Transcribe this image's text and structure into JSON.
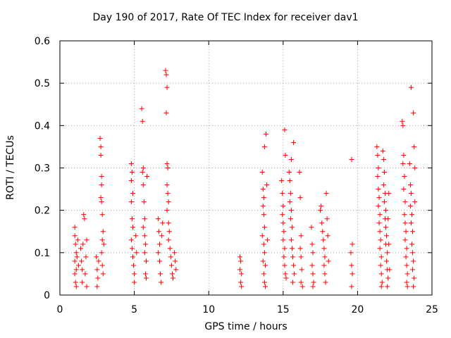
{
  "chart_data": {
    "type": "scatter",
    "title": "Day 190 of 2017, Rate Of TEC Index for receiver dav1",
    "xlabel": "GPS time / hours",
    "ylabel": "ROTI / TECUs",
    "xlim": [
      0,
      25
    ],
    "ylim": [
      0,
      0.6
    ],
    "xticks": [
      "0",
      "5",
      "10",
      "15",
      "20",
      "25"
    ],
    "yticks": [
      "0",
      "0.1",
      "0.2",
      "0.3",
      "0.4",
      "0.5",
      "0.6"
    ],
    "grid": true,
    "marker": "+",
    "color": "#ff0000",
    "series": [
      {
        "points": [
          [
            1.0,
            0.16
          ],
          [
            1.0,
            0.14
          ],
          [
            1.05,
            0.12
          ],
          [
            1.1,
            0.1
          ],
          [
            1.0,
            0.08
          ],
          [
            1.1,
            0.06
          ],
          [
            1.0,
            0.05
          ],
          [
            1.05,
            0.03
          ],
          [
            1.1,
            0.02
          ],
          [
            1.15,
            0.09
          ],
          [
            1.2,
            0.13
          ],
          [
            1.25,
            0.07
          ],
          [
            1.4,
            0.11
          ],
          [
            1.45,
            0.08
          ],
          [
            1.5,
            0.06
          ],
          [
            1.5,
            0.03
          ],
          [
            1.55,
            0.12
          ],
          [
            1.6,
            0.19
          ],
          [
            1.65,
            0.18
          ],
          [
            1.7,
            0.05
          ],
          [
            1.75,
            0.09
          ],
          [
            1.8,
            0.02
          ],
          [
            1.8,
            0.13
          ],
          [
            2.45,
            0.09
          ],
          [
            2.5,
            0.06
          ],
          [
            2.5,
            0.02
          ],
          [
            2.55,
            0.04
          ],
          [
            2.6,
            0.08
          ],
          [
            2.7,
            0.37
          ],
          [
            2.75,
            0.35
          ],
          [
            2.75,
            0.33
          ],
          [
            2.8,
            0.28
          ],
          [
            2.8,
            0.26
          ],
          [
            2.75,
            0.23
          ],
          [
            2.8,
            0.22
          ],
          [
            2.85,
            0.19
          ],
          [
            2.9,
            0.15
          ],
          [
            2.85,
            0.13
          ],
          [
            2.8,
            0.1
          ],
          [
            2.85,
            0.07
          ],
          [
            2.9,
            0.05
          ],
          [
            2.95,
            0.12
          ],
          [
            4.8,
            0.31
          ],
          [
            4.85,
            0.29
          ],
          [
            4.8,
            0.27
          ],
          [
            4.9,
            0.24
          ],
          [
            4.8,
            0.22
          ],
          [
            4.85,
            0.18
          ],
          [
            4.9,
            0.16
          ],
          [
            4.8,
            0.13
          ],
          [
            4.85,
            0.11
          ],
          [
            4.9,
            0.09
          ],
          [
            4.95,
            0.07
          ],
          [
            5.0,
            0.05
          ],
          [
            5.0,
            0.03
          ],
          [
            5.1,
            0.14
          ],
          [
            5.15,
            0.1
          ],
          [
            5.5,
            0.44
          ],
          [
            5.55,
            0.41
          ],
          [
            5.6,
            0.3
          ],
          [
            5.55,
            0.29
          ],
          [
            5.6,
            0.26
          ],
          [
            5.65,
            0.22
          ],
          [
            5.7,
            0.18
          ],
          [
            5.6,
            0.16
          ],
          [
            5.7,
            0.14
          ],
          [
            5.75,
            0.12
          ],
          [
            5.7,
            0.1
          ],
          [
            5.8,
            0.08
          ],
          [
            5.75,
            0.05
          ],
          [
            5.8,
            0.04
          ],
          [
            5.85,
            0.28
          ],
          [
            6.6,
            0.18
          ],
          [
            6.65,
            0.15
          ],
          [
            6.7,
            0.12
          ],
          [
            6.6,
            0.1
          ],
          [
            6.7,
            0.08
          ],
          [
            6.75,
            0.05
          ],
          [
            6.8,
            0.03
          ],
          [
            6.85,
            0.14
          ],
          [
            6.9,
            0.17
          ],
          [
            7.1,
            0.53
          ],
          [
            7.15,
            0.52
          ],
          [
            7.2,
            0.49
          ],
          [
            7.15,
            0.43
          ],
          [
            7.2,
            0.31
          ],
          [
            7.25,
            0.3
          ],
          [
            7.2,
            0.26
          ],
          [
            7.25,
            0.24
          ],
          [
            7.3,
            0.22
          ],
          [
            7.2,
            0.2
          ],
          [
            7.3,
            0.17
          ],
          [
            7.35,
            0.15
          ],
          [
            7.3,
            0.13
          ],
          [
            7.4,
            0.11
          ],
          [
            7.45,
            0.09
          ],
          [
            7.5,
            0.07
          ],
          [
            7.55,
            0.05
          ],
          [
            7.6,
            0.04
          ],
          [
            7.7,
            0.1
          ],
          [
            7.75,
            0.08
          ],
          [
            7.8,
            0.06
          ],
          [
            12.1,
            0.09
          ],
          [
            12.15,
            0.08
          ],
          [
            12.1,
            0.06
          ],
          [
            12.2,
            0.05
          ],
          [
            12.15,
            0.03
          ],
          [
            12.2,
            0.02
          ],
          [
            13.6,
            0.29
          ],
          [
            13.65,
            0.25
          ],
          [
            13.7,
            0.23
          ],
          [
            13.65,
            0.21
          ],
          [
            13.7,
            0.19
          ],
          [
            13.75,
            0.16
          ],
          [
            13.6,
            0.14
          ],
          [
            13.7,
            0.12
          ],
          [
            13.75,
            0.1
          ],
          [
            13.65,
            0.08
          ],
          [
            13.8,
            0.07
          ],
          [
            13.7,
            0.05
          ],
          [
            13.75,
            0.03
          ],
          [
            13.8,
            0.02
          ],
          [
            13.85,
            0.38
          ],
          [
            13.75,
            0.35
          ],
          [
            13.9,
            0.26
          ],
          [
            13.95,
            0.13
          ],
          [
            14.9,
            0.27
          ],
          [
            14.95,
            0.24
          ],
          [
            15.0,
            0.21
          ],
          [
            14.95,
            0.19
          ],
          [
            15.0,
            0.17
          ],
          [
            15.05,
            0.15
          ],
          [
            15.0,
            0.13
          ],
          [
            15.1,
            0.11
          ],
          [
            15.05,
            0.09
          ],
          [
            15.1,
            0.07
          ],
          [
            15.15,
            0.05
          ],
          [
            15.2,
            0.04
          ],
          [
            15.1,
            0.39
          ],
          [
            15.15,
            0.33
          ],
          [
            15.4,
            0.29
          ],
          [
            15.45,
            0.27
          ],
          [
            15.5,
            0.24
          ],
          [
            15.45,
            0.22
          ],
          [
            15.55,
            0.2
          ],
          [
            15.5,
            0.18
          ],
          [
            15.6,
            0.16
          ],
          [
            15.55,
            0.13
          ],
          [
            15.6,
            0.11
          ],
          [
            15.65,
            0.09
          ],
          [
            15.7,
            0.07
          ],
          [
            15.75,
            0.05
          ],
          [
            15.65,
            0.03
          ],
          [
            15.55,
            0.32
          ],
          [
            15.7,
            0.36
          ],
          [
            16.1,
            0.29
          ],
          [
            16.15,
            0.23
          ],
          [
            16.2,
            0.14
          ],
          [
            16.15,
            0.11
          ],
          [
            16.2,
            0.09
          ],
          [
            16.25,
            0.06
          ],
          [
            16.2,
            0.03
          ],
          [
            16.3,
            0.02
          ],
          [
            16.9,
            0.16
          ],
          [
            16.95,
            0.12
          ],
          [
            17.0,
            0.1
          ],
          [
            16.95,
            0.07
          ],
          [
            17.0,
            0.05
          ],
          [
            17.05,
            0.03
          ],
          [
            17.0,
            0.02
          ],
          [
            17.5,
            0.2
          ],
          [
            17.55,
            0.21
          ],
          [
            17.6,
            0.17
          ],
          [
            17.65,
            0.15
          ],
          [
            17.7,
            0.13
          ],
          [
            17.75,
            0.11
          ],
          [
            17.8,
            0.09
          ],
          [
            17.75,
            0.07
          ],
          [
            17.8,
            0.05
          ],
          [
            17.85,
            0.03
          ],
          [
            17.9,
            0.24
          ],
          [
            17.95,
            0.18
          ],
          [
            18.0,
            0.14
          ],
          [
            18.05,
            0.08
          ],
          [
            19.6,
            0.32
          ],
          [
            19.65,
            0.12
          ],
          [
            19.55,
            0.1
          ],
          [
            19.6,
            0.07
          ],
          [
            19.65,
            0.05
          ],
          [
            19.6,
            0.02
          ],
          [
            21.3,
            0.35
          ],
          [
            21.35,
            0.33
          ],
          [
            21.4,
            0.3
          ],
          [
            21.35,
            0.28
          ],
          [
            21.4,
            0.25
          ],
          [
            21.45,
            0.23
          ],
          [
            21.4,
            0.21
          ],
          [
            21.5,
            0.19
          ],
          [
            21.45,
            0.17
          ],
          [
            21.5,
            0.15
          ],
          [
            21.55,
            0.13
          ],
          [
            21.5,
            0.11
          ],
          [
            21.6,
            0.09
          ],
          [
            21.55,
            0.07
          ],
          [
            21.6,
            0.05
          ],
          [
            21.65,
            0.03
          ],
          [
            21.6,
            0.02
          ],
          [
            21.7,
            0.34
          ],
          [
            21.75,
            0.32
          ],
          [
            21.8,
            0.29
          ],
          [
            21.75,
            0.26
          ],
          [
            21.85,
            0.24
          ],
          [
            21.8,
            0.22
          ],
          [
            21.9,
            0.2
          ],
          [
            21.85,
            0.18
          ],
          [
            21.9,
            0.16
          ],
          [
            21.95,
            0.14
          ],
          [
            21.9,
            0.12
          ],
          [
            22.0,
            0.1
          ],
          [
            21.95,
            0.08
          ],
          [
            22.0,
            0.06
          ],
          [
            22.05,
            0.04
          ],
          [
            22.0,
            0.02
          ],
          [
            22.1,
            0.24
          ],
          [
            22.05,
            0.18
          ],
          [
            22.1,
            0.12
          ],
          [
            22.15,
            0.06
          ],
          [
            23.0,
            0.41
          ],
          [
            23.05,
            0.4
          ],
          [
            23.1,
            0.33
          ],
          [
            23.05,
            0.31
          ],
          [
            23.15,
            0.28
          ],
          [
            23.1,
            0.25
          ],
          [
            23.2,
            0.22
          ],
          [
            23.15,
            0.19
          ],
          [
            23.2,
            0.17
          ],
          [
            23.25,
            0.15
          ],
          [
            23.2,
            0.13
          ],
          [
            23.3,
            0.11
          ],
          [
            23.25,
            0.09
          ],
          [
            23.3,
            0.07
          ],
          [
            23.35,
            0.05
          ],
          [
            23.3,
            0.03
          ],
          [
            23.35,
            0.02
          ],
          [
            23.5,
            0.31
          ],
          [
            23.55,
            0.26
          ],
          [
            23.6,
            0.24
          ],
          [
            23.55,
            0.21
          ],
          [
            23.65,
            0.19
          ],
          [
            23.6,
            0.17
          ],
          [
            23.7,
            0.15
          ],
          [
            23.65,
            0.12
          ],
          [
            23.7,
            0.1
          ],
          [
            23.75,
            0.08
          ],
          [
            23.7,
            0.06
          ],
          [
            23.8,
            0.04
          ],
          [
            23.75,
            0.02
          ],
          [
            23.6,
            0.49
          ],
          [
            23.75,
            0.43
          ],
          [
            23.8,
            0.35
          ],
          [
            23.85,
            0.3
          ],
          [
            23.85,
            0.22
          ]
        ]
      }
    ]
  }
}
